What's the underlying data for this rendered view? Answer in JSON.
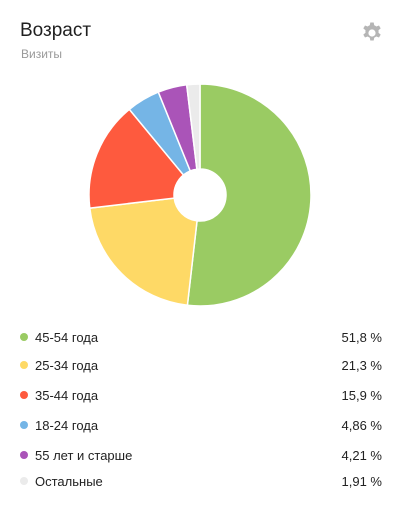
{
  "header": {
    "title": "Возраст",
    "subtitle": "Визиты",
    "settings_icon": "gear-icon"
  },
  "chart_data": {
    "type": "pie",
    "donut": true,
    "title": "Возраст",
    "subtitle": "Визиты",
    "categories": [
      "45-54 года",
      "25-34 года",
      "35-44 года",
      "18-24 года",
      "55 лет и старше",
      "Остальные"
    ],
    "values": [
      51.8,
      21.3,
      15.9,
      4.86,
      4.21,
      1.91
    ],
    "value_labels": [
      "51,8 %",
      "21,3 %",
      "15,9 %",
      "4,86 %",
      "4,21 %",
      "1,91 %"
    ],
    "colors": [
      "#9acb63",
      "#fed966",
      "#fe5a3e",
      "#75b5e6",
      "#aa54b8",
      "#ebebeb"
    ],
    "legend_position": "bottom"
  }
}
